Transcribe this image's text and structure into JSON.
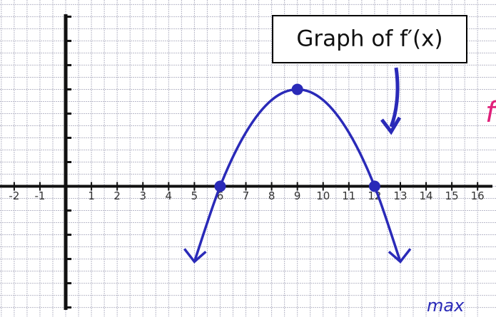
{
  "chart_data": {
    "type": "line",
    "title": "Graph of f′(x)",
    "x": [
      5,
      6,
      7,
      8,
      9,
      10,
      11,
      12,
      13
    ],
    "values": [
      -3.11,
      0,
      2.22,
      3.56,
      4,
      3.56,
      2.22,
      0,
      -3.11
    ],
    "color": "#2a2ab8",
    "points": {
      "x": [
        6,
        9,
        12
      ],
      "values": [
        0,
        4,
        0
      ]
    },
    "xlim": [
      -2.33,
      16.3
    ],
    "ylim": [
      -5.1,
      7.1
    ],
    "xticks": [
      -2,
      -1,
      1,
      2,
      3,
      4,
      5,
      6,
      7,
      8,
      9,
      10,
      11,
      12,
      13,
      14,
      15,
      16
    ],
    "grid": true,
    "annotations": [
      "max",
      "f′("
    ]
  }
}
